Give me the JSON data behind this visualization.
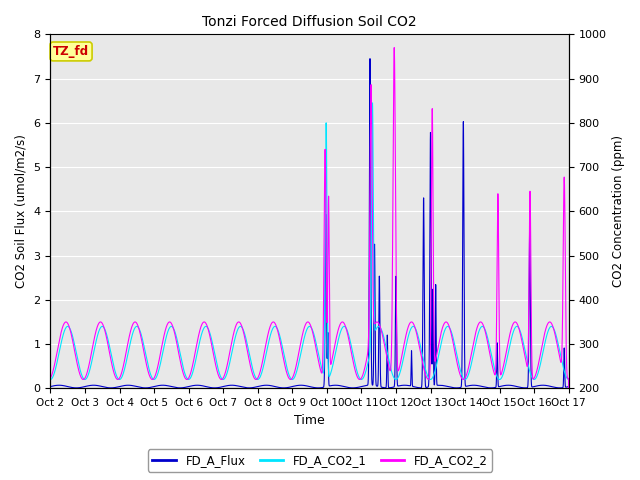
{
  "title": "Tonzi Forced Diffusion Soil CO2",
  "xlabel": "Time",
  "ylabel_left": "CO2 Soil Flux (umol/m2/s)",
  "ylabel_right": "CO2 Concentration (ppm)",
  "ylim_left": [
    0.0,
    8.0
  ],
  "ylim_right": [
    200,
    1000
  ],
  "yticks_left": [
    0.0,
    1.0,
    2.0,
    3.0,
    4.0,
    5.0,
    6.0,
    7.0,
    8.0
  ],
  "yticks_right": [
    200,
    300,
    400,
    500,
    600,
    700,
    800,
    900,
    1000
  ],
  "xtick_labels": [
    "Oct 2",
    "Oct 3",
    "Oct 4",
    "Oct 5",
    "Oct 6",
    "Oct 7",
    "Oct 8",
    "Oct 9",
    "Oct 10",
    "Oct 11",
    "Oct 12",
    "Oct 13",
    "Oct 14",
    "Oct 15",
    "Oct 16",
    "Oct 17"
  ],
  "legend_labels": [
    "FD_A_Flux",
    "FD_A_CO2_1",
    "FD_A_CO2_2"
  ],
  "tag_text": "TZ_fd",
  "tag_bg": "#ffff99",
  "tag_border": "#cccc00",
  "tag_text_color": "#cc0000",
  "flux_color": "#0000cc",
  "co2_1_color": "#00e5ff",
  "co2_2_color": "#ff00ff",
  "background_color": "#e8e8e8",
  "n_days": 15,
  "points_per_day": 288
}
